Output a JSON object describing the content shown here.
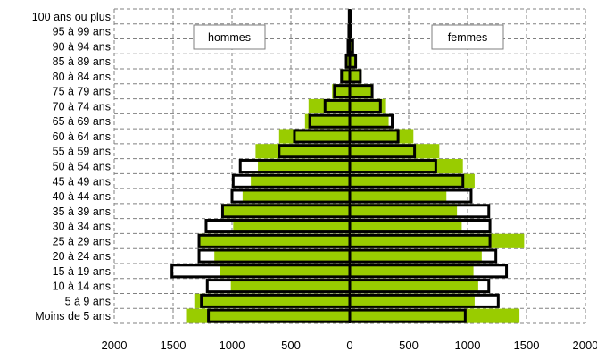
{
  "chart_data": {
    "type": "bar",
    "subtype": "population-pyramid",
    "categories": [
      "Moins de 5 ans",
      "5 à 9 ans",
      "10 à 14 ans",
      "15 à 19 ans",
      "20 à 24 ans",
      "25 à 29 ans",
      "30 à 34 ans",
      "35 à 39 ans",
      "40 à 44 ans",
      "45 à 49 ans",
      "50 à 54 ans",
      "55 à 59 ans",
      "60 à 64 ans",
      "65 à 69 ans",
      "70 à 74 ans",
      "75 à 79 ans",
      "80 à 84 ans",
      "85 à 89 ans",
      "90 à 94 ans",
      "95 à 99 ans",
      "100 ans ou plus"
    ],
    "series": [
      {
        "name": "hommes",
        "style": "filled",
        "color": "#99cc00",
        "values": [
          1390,
          1320,
          1010,
          1100,
          1150,
          1280,
          990,
          1070,
          910,
          840,
          780,
          800,
          600,
          380,
          350,
          150,
          80,
          30,
          15,
          8,
          5
        ]
      },
      {
        "name": "hommes",
        "style": "outline",
        "color": "#000000",
        "values": [
          1200,
          1260,
          1210,
          1510,
          1280,
          1280,
          1220,
          1080,
          1000,
          990,
          930,
          600,
          470,
          340,
          210,
          130,
          70,
          30,
          15,
          8,
          5
        ]
      },
      {
        "name": "femmes",
        "style": "filled",
        "color": "#99cc00",
        "values": [
          1440,
          1060,
          1090,
          1050,
          1120,
          1480,
          950,
          910,
          820,
          1060,
          960,
          760,
          540,
          330,
          300,
          190,
          100,
          40,
          20,
          10,
          5
        ]
      },
      {
        "name": "femmes",
        "style": "outline",
        "color": "#000000",
        "values": [
          980,
          1260,
          1180,
          1330,
          1240,
          1190,
          1190,
          1180,
          1030,
          960,
          730,
          550,
          410,
          360,
          260,
          190,
          90,
          50,
          25,
          10,
          5
        ]
      }
    ],
    "x_ticks": [
      "2000",
      "1500",
      "1000",
      "500",
      "0",
      "500",
      "1000",
      "1500",
      "2000"
    ],
    "xlim": [
      -2000,
      2000
    ],
    "grid": "dashed",
    "legend": [
      "hommes",
      "femmes"
    ],
    "legend_placement": "top-left and top-right boxes",
    "title": "",
    "xlabel": "",
    "ylabel": ""
  }
}
